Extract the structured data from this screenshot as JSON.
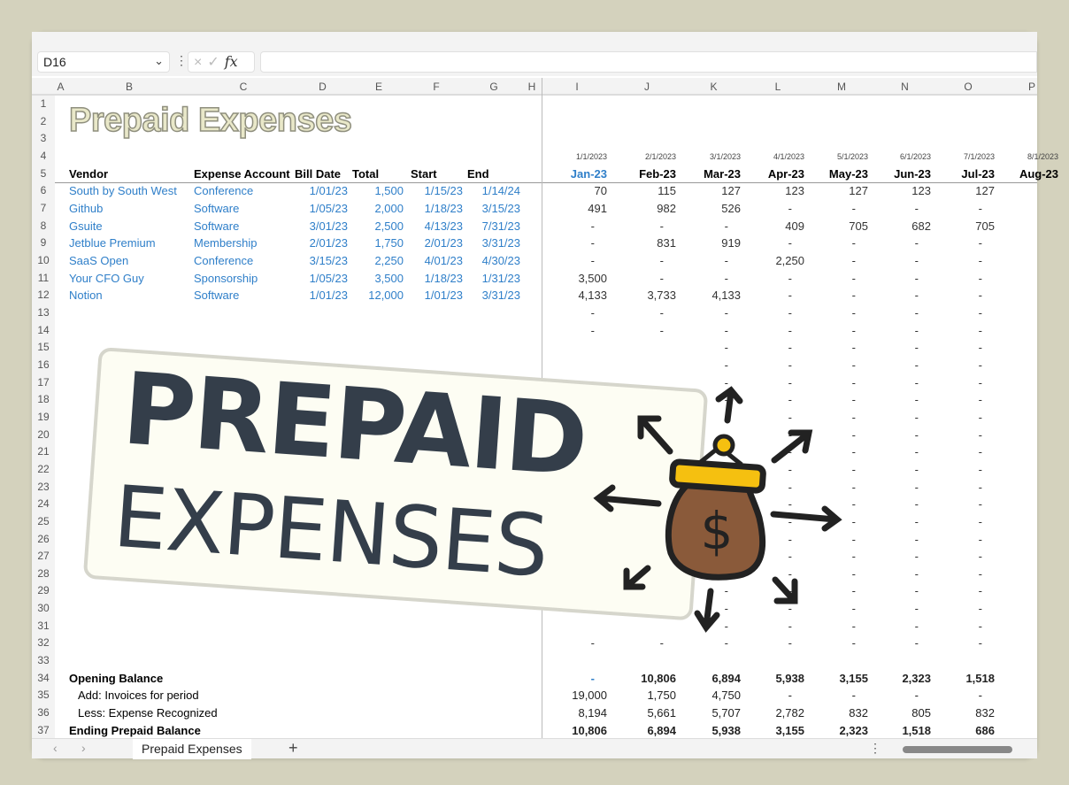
{
  "formula_bar": {
    "name_box": "D16",
    "cancel_icon": "×",
    "enter_icon": "✓",
    "fx_label": "fx",
    "formula": ""
  },
  "columns": [
    "A",
    "B",
    "C",
    "D",
    "E",
    "F",
    "G",
    "H",
    "I",
    "J",
    "K",
    "L",
    "M",
    "N",
    "O",
    "P"
  ],
  "title": "Prepaid Expenses",
  "headers": {
    "vendor": "Vendor",
    "account": "Expense Account",
    "bill_date": "Bill Date",
    "total": "Total",
    "start": "Start",
    "end": "End"
  },
  "month_dates": [
    "1/1/2023",
    "2/1/2023",
    "3/1/2023",
    "4/1/2023",
    "5/1/2023",
    "6/1/2023",
    "7/1/2023",
    "8/1/2023"
  ],
  "month_labels": [
    "Jan-23",
    "Feb-23",
    "Mar-23",
    "Apr-23",
    "May-23",
    "Jun-23",
    "Jul-23",
    "Aug-23"
  ],
  "rows": [
    {
      "vendor": "South by South West",
      "account": "Conference",
      "bill_date": "1/01/23",
      "total": "1,500",
      "start": "1/15/23",
      "end": "1/14/24",
      "months": [
        "70",
        "115",
        "127",
        "123",
        "127",
        "123",
        "127"
      ]
    },
    {
      "vendor": "Github",
      "account": "Software",
      "bill_date": "1/05/23",
      "total": "2,000",
      "start": "1/18/23",
      "end": "3/15/23",
      "months": [
        "491",
        "982",
        "526",
        "-",
        "-",
        "-",
        "-"
      ]
    },
    {
      "vendor": "Gsuite",
      "account": "Software",
      "bill_date": "3/01/23",
      "total": "2,500",
      "start": "4/13/23",
      "end": "7/31/23",
      "months": [
        "-",
        "-",
        "-",
        "409",
        "705",
        "682",
        "705"
      ]
    },
    {
      "vendor": "Jetblue Premium",
      "account": "Membership",
      "bill_date": "2/01/23",
      "total": "1,750",
      "start": "2/01/23",
      "end": "3/31/23",
      "months": [
        "-",
        "831",
        "919",
        "-",
        "-",
        "-",
        "-"
      ]
    },
    {
      "vendor": "SaaS Open",
      "account": "Conference",
      "bill_date": "3/15/23",
      "total": "2,250",
      "start": "4/01/23",
      "end": "4/30/23",
      "months": [
        "-",
        "-",
        "-",
        "2,250",
        "-",
        "-",
        "-"
      ]
    },
    {
      "vendor": "Your CFO Guy",
      "account": "Sponsorship",
      "bill_date": "1/05/23",
      "total": "3,500",
      "start": "1/18/23",
      "end": "1/31/23",
      "months": [
        "3,500",
        "-",
        "-",
        "-",
        "-",
        "-",
        "-"
      ]
    },
    {
      "vendor": "Notion",
      "account": "Software",
      "bill_date": "1/01/23",
      "total": "12,000",
      "start": "1/01/23",
      "end": "3/31/23",
      "months": [
        "4,133",
        "3,733",
        "4,133",
        "-",
        "-",
        "-",
        "-"
      ]
    }
  ],
  "empty_value": "-",
  "summary": [
    {
      "label": "Opening Balance",
      "bold": true,
      "values": [
        "-",
        "10,806",
        "6,894",
        "5,938",
        "3,155",
        "2,323",
        "1,518"
      ]
    },
    {
      "label": "Add: Invoices for period",
      "bold": false,
      "values": [
        "19,000",
        "1,750",
        "4,750",
        "-",
        "-",
        "-",
        "-"
      ]
    },
    {
      "label": "Less: Expense Recognized",
      "bold": false,
      "values": [
        "8,194",
        "5,661",
        "5,707",
        "2,782",
        "832",
        "805",
        "832"
      ]
    },
    {
      "label": "Ending Prepaid Balance",
      "bold": true,
      "values": [
        "10,806",
        "6,894",
        "5,938",
        "3,155",
        "2,323",
        "1,518",
        "686"
      ]
    }
  ],
  "sheet_tabs": {
    "active": "Prepaid Expenses",
    "add": "+",
    "prev": "‹",
    "next": "›"
  },
  "overlay": {
    "line1": "PREPAID",
    "line2": "EXPENSES",
    "icon": "money-bag-icon"
  },
  "colors": {
    "accent_blue": "#2f7fc9",
    "overlay_text": "#343e4a",
    "bag_brown": "#8a5a3a",
    "bag_gold": "#f5c010"
  }
}
